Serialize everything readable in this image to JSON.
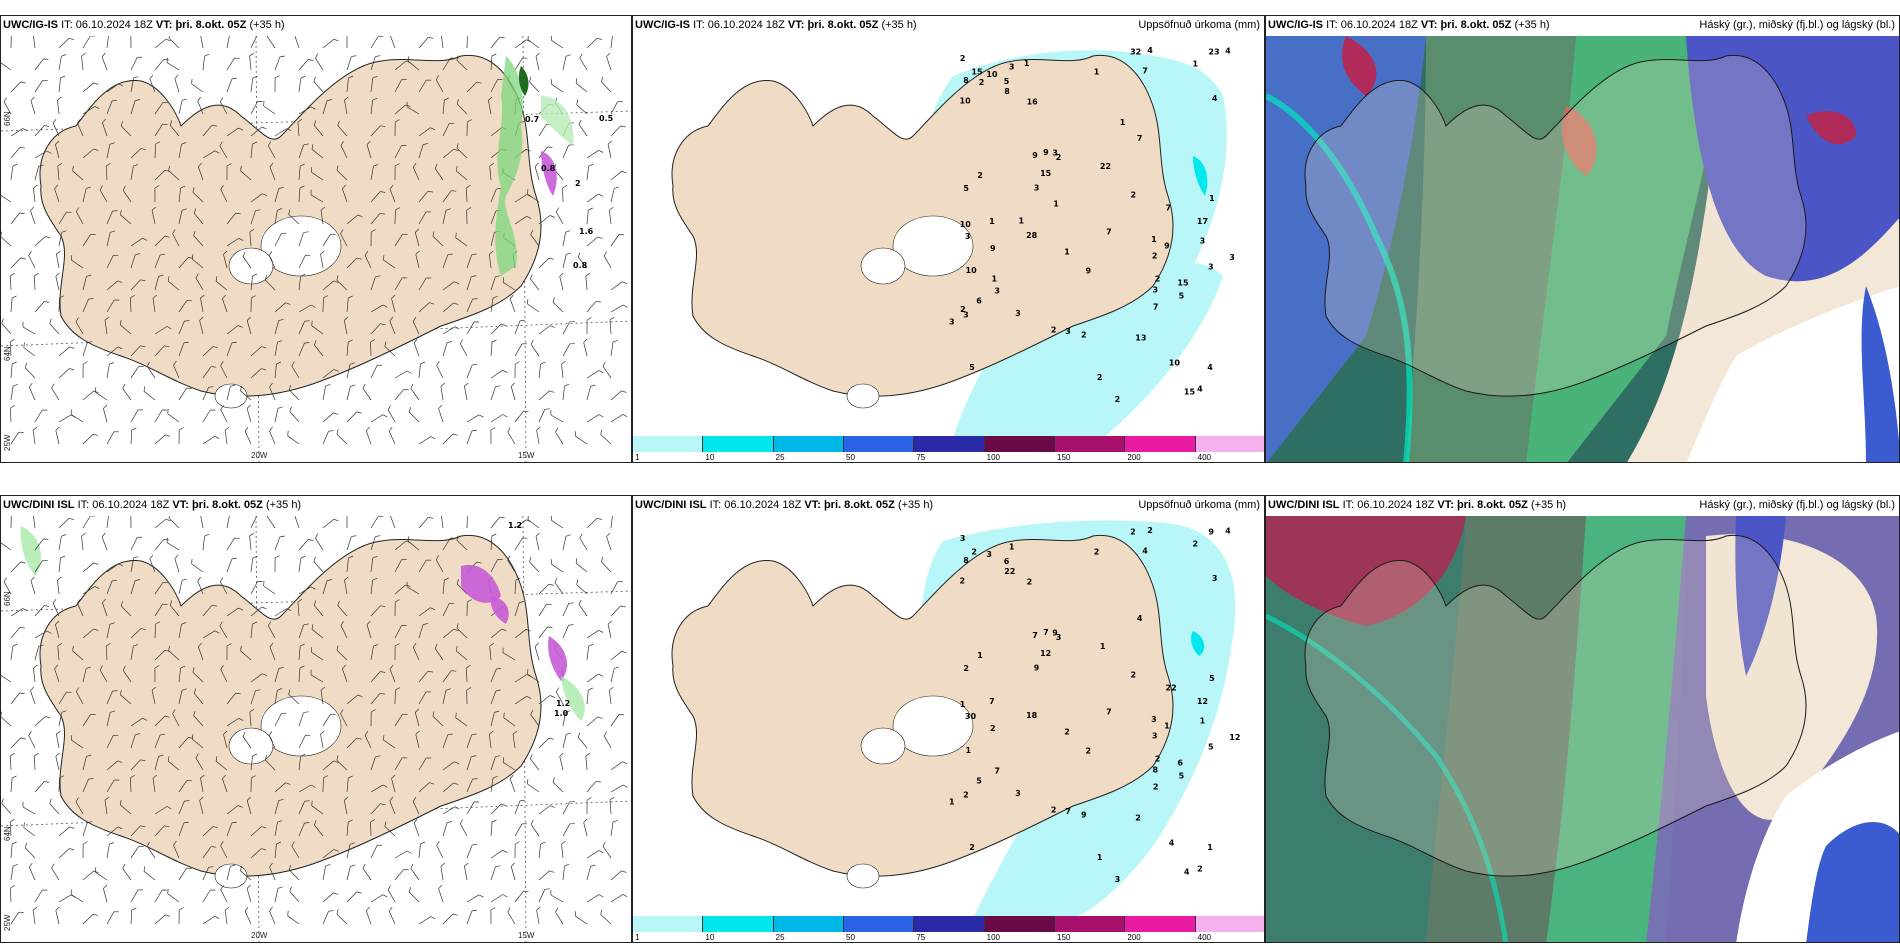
{
  "panels": [
    {
      "model": "UWC/IG-IS",
      "it_label": "IT:",
      "it": "06.10.2024 18Z",
      "vt_label": "VT:",
      "vt": "þri. 8.okt. 05Z",
      "lead": "(+35 h)",
      "title_right": ""
    },
    {
      "model": "UWC/IG-IS",
      "it_label": "IT:",
      "it": "06.10.2024 18Z",
      "vt_label": "VT:",
      "vt": "þri. 8.okt. 05Z",
      "lead": "(+35 h)",
      "title_right": "Uppsöfnuð úrkoma (mm)"
    },
    {
      "model": "UWC/IG-IS",
      "it_label": "IT:",
      "it": "06.10.2024 18Z",
      "vt_label": "VT:",
      "vt": "þri. 8.okt. 05Z",
      "lead": "(+35 h)",
      "title_right": "Háský (gr.), miðský (fj.bl.) og lágský (bl.)"
    },
    {
      "model": "UWC/DINI ISL",
      "it_label": "IT:",
      "it": "06.10.2024 18Z",
      "vt_label": "VT:",
      "vt": "þri. 8.okt. 05Z",
      "lead": "(+35 h)",
      "title_right": ""
    },
    {
      "model": "UWC/DINI ISL",
      "it_label": "IT:",
      "it": "06.10.2024 18Z",
      "vt_label": "VT:",
      "vt": "þri. 8.okt. 05Z",
      "lead": "(+35 h)",
      "title_right": "Uppsöfnuð úrkoma (mm)"
    },
    {
      "model": "UWC/DINI ISL",
      "it_label": "IT:",
      "it": "06.10.2024 18Z",
      "vt_label": "VT:",
      "vt": "þri. 8.okt. 05Z",
      "lead": "(+35 h)",
      "title_right": "Háský (gr.), miðský (fj.bl.) og lágský (bl.)"
    }
  ],
  "grid_labels": {
    "lon": [
      "20W",
      "15W"
    ],
    "lat": [
      "66N",
      "64N",
      "65N",
      "64N",
      "25W"
    ]
  },
  "wind_numbers_top": [
    "0.5",
    "0.7",
    "0.8",
    "1.6",
    "0.8",
    "2"
  ],
  "wind_numbers_bottom": [
    "1.2",
    "1.0",
    "1.2"
  ],
  "precip_legend": {
    "ticks": [
      "1",
      "10",
      "25",
      "50",
      "75",
      "100",
      "150",
      "200",
      "400"
    ],
    "colors": [
      "#b8f6f8",
      "#00e8ee",
      "#00b8e8",
      "#2a62e8",
      "#2a2aa8",
      "#6a0a48",
      "#a8106e",
      "#e81aa0",
      "#f6b0ee"
    ]
  },
  "precip_values_top": [
    "2",
    "3",
    "5",
    "3",
    "2",
    "10",
    "3",
    "7",
    "9",
    "2",
    "10",
    "10",
    "8",
    "4",
    "2",
    "1",
    "9",
    "7",
    "3",
    "3",
    "4",
    "1",
    "3",
    "3",
    "32",
    "5",
    "2",
    "3",
    "8",
    "7",
    "2",
    "13",
    "15",
    "28",
    "17",
    "5",
    "3",
    "1",
    "2",
    "6",
    "4",
    "4",
    "4",
    "3",
    "15",
    "3",
    "3",
    "15",
    "2",
    "5",
    "3",
    "9",
    "23",
    "1",
    "7",
    "15",
    "7",
    "2",
    "9",
    "10",
    "9",
    "16",
    "22",
    "10",
    "1",
    "2",
    "1",
    "1",
    "1",
    "2",
    "1",
    "1",
    "1",
    "2"
  ],
  "precip_values_bottom": [
    "3",
    "1",
    "2",
    "1",
    "3",
    "4",
    "2",
    "4",
    "7",
    "3",
    "2",
    "1",
    "8",
    "1",
    "2",
    "5",
    "2",
    "7",
    "9",
    "7",
    "4",
    "2",
    "9",
    "5",
    "2",
    "6",
    "2",
    "30",
    "22",
    "22",
    "1",
    "2",
    "12",
    "18",
    "12",
    "5",
    "8",
    "7",
    "9",
    "5",
    "3",
    "2",
    "2",
    "7",
    "6",
    "3",
    "1",
    "2",
    "2",
    "2",
    "12",
    "7",
    "9",
    "3",
    "2",
    "4",
    "4",
    "3",
    "2",
    "3",
    "1",
    "2",
    "1",
    "1",
    "2",
    "1",
    "2"
  ],
  "colors": {
    "land": "#f0dcc4",
    "coast": "#222222",
    "grid": "#555555"
  }
}
